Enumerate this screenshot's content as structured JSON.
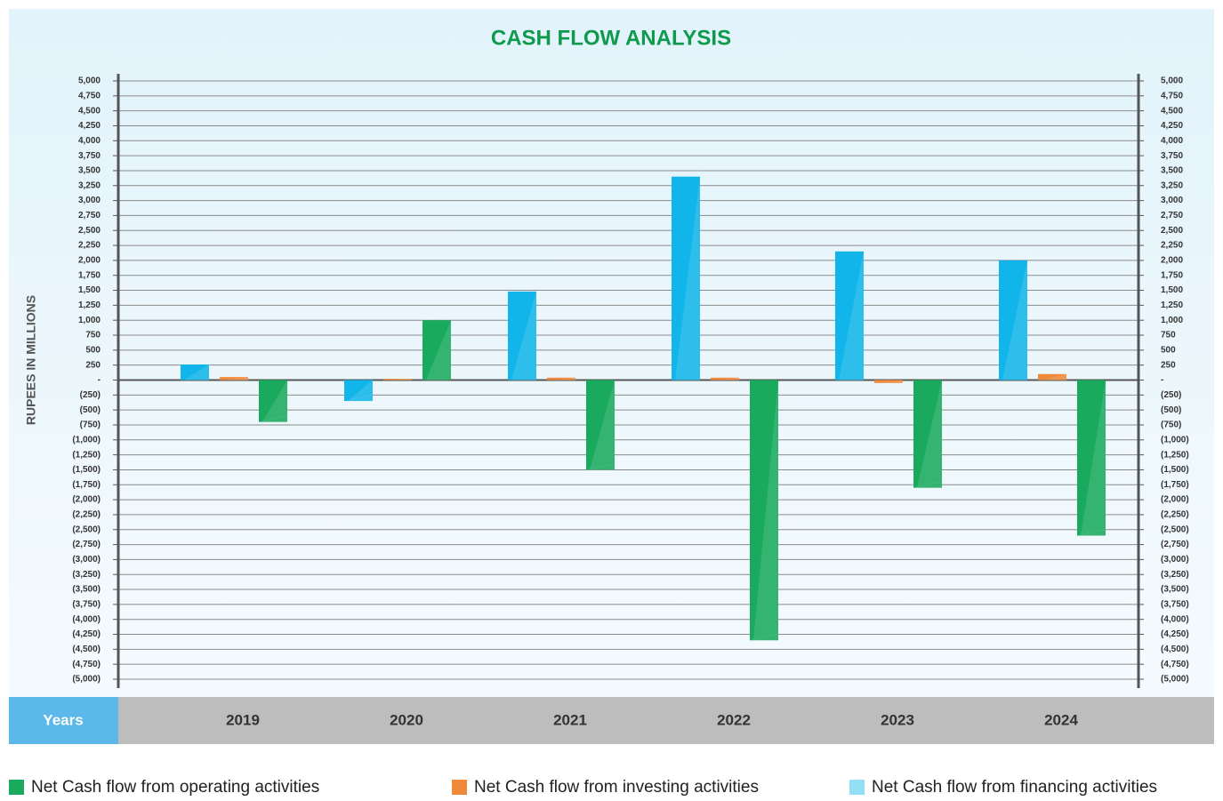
{
  "chart_data": {
    "type": "bar",
    "title": "CASH FLOW ANALYSIS",
    "y_axis_label": "RUPEES IN MILLIONS",
    "x_axis_label": "Years",
    "categories": [
      "2019",
      "2020",
      "2021",
      "2022",
      "2023",
      "2024"
    ],
    "series": [
      {
        "name": "Net Cash flow from financing activities",
        "color": "#12b5ea",
        "values": [
          260,
          -350,
          1480,
          3400,
          2150,
          2000
        ]
      },
      {
        "name": "Net Cash flow from investing activities",
        "color": "#f0893a",
        "values": [
          50,
          20,
          40,
          40,
          -50,
          100
        ]
      },
      {
        "name": "Net Cash flow from operating activities",
        "color": "#1aaa5e",
        "values": [
          -700,
          1000,
          -1500,
          -4350,
          -1800,
          -2600
        ]
      }
    ],
    "ylim": [
      -5000,
      5000
    ],
    "yticks": [
      {
        "value": 5000,
        "label": "5,000"
      },
      {
        "value": 4750,
        "label": "4,750"
      },
      {
        "value": 4500,
        "label": "4,500"
      },
      {
        "value": 4250,
        "label": "4,250"
      },
      {
        "value": 4000,
        "label": "4,000"
      },
      {
        "value": 3750,
        "label": "3,750"
      },
      {
        "value": 3500,
        "label": "3,500"
      },
      {
        "value": 3250,
        "label": "3,250"
      },
      {
        "value": 3000,
        "label": "3,000"
      },
      {
        "value": 2750,
        "label": "2,750"
      },
      {
        "value": 2500,
        "label": "2,500"
      },
      {
        "value": 2250,
        "label": "2,250"
      },
      {
        "value": 2000,
        "label": "2,000"
      },
      {
        "value": 1750,
        "label": "1,750"
      },
      {
        "value": 1500,
        "label": "1,500"
      },
      {
        "value": 1250,
        "label": "1,250"
      },
      {
        "value": 1000,
        "label": "1,000"
      },
      750,
      500,
      250,
      {
        "value": 0,
        "label": "-"
      },
      {
        "value": -250,
        "label": "(250)"
      },
      {
        "value": -500,
        "label": "(500)"
      },
      {
        "value": -750,
        "label": "(750)"
      },
      {
        "value": -1000,
        "label": "(1,000)"
      },
      {
        "value": -1250,
        "label": "(1,250)"
      },
      {
        "value": -1500,
        "label": "(1,500)"
      },
      {
        "value": -1750,
        "label": "(1,750)"
      },
      {
        "value": -2000,
        "label": "(2,000)"
      },
      {
        "value": -2250,
        "label": "(2,250)"
      },
      {
        "value": -2500,
        "label": "(2,500)"
      },
      {
        "value": -2750,
        "label": "(2,750)"
      },
      {
        "value": -3000,
        "label": "(3,000)"
      },
      {
        "value": -3250,
        "label": "(3,250)"
      },
      {
        "value": -3500,
        "label": "(3,500)"
      },
      {
        "value": -3750,
        "label": "(3,750)"
      },
      {
        "value": -4000,
        "label": "(4,000)"
      },
      {
        "value": -4250,
        "label": "(4,250)"
      },
      {
        "value": -4500,
        "label": "(4,500)"
      },
      {
        "value": -4750,
        "label": "(4,750)"
      },
      {
        "value": -5000,
        "label": "(5,000)"
      }
    ],
    "grid": true,
    "legend": "bottom"
  }
}
